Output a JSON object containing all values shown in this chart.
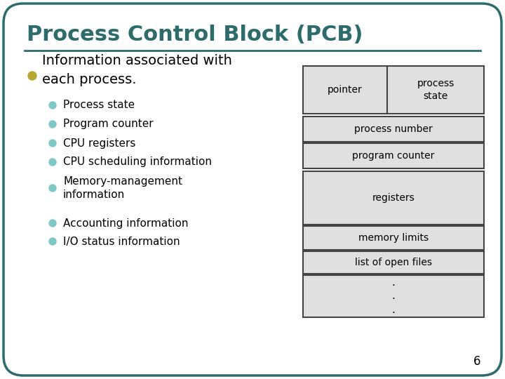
{
  "title": "Process Control Block (PCB)",
  "title_color": "#2E6B6B",
  "title_fontsize": 22,
  "bg_color": "#FFFFFF",
  "slide_border_color": "#2E6B6B",
  "separator_color": "#2E6B6B",
  "bullet_main": "Information associated with\neach process.",
  "bullet_main_color": "#B8A830",
  "bullet_items": [
    "Process state",
    "Program counter",
    "CPU registers",
    "CPU scheduling information",
    "Memory-management\ninformation",
    "Accounting information",
    "I/O status information"
  ],
  "bullet_color": "#7EC8C8",
  "text_color": "#000000",
  "box_face": "#E0E0E0",
  "box_edge": "#444444",
  "page_number": "6"
}
